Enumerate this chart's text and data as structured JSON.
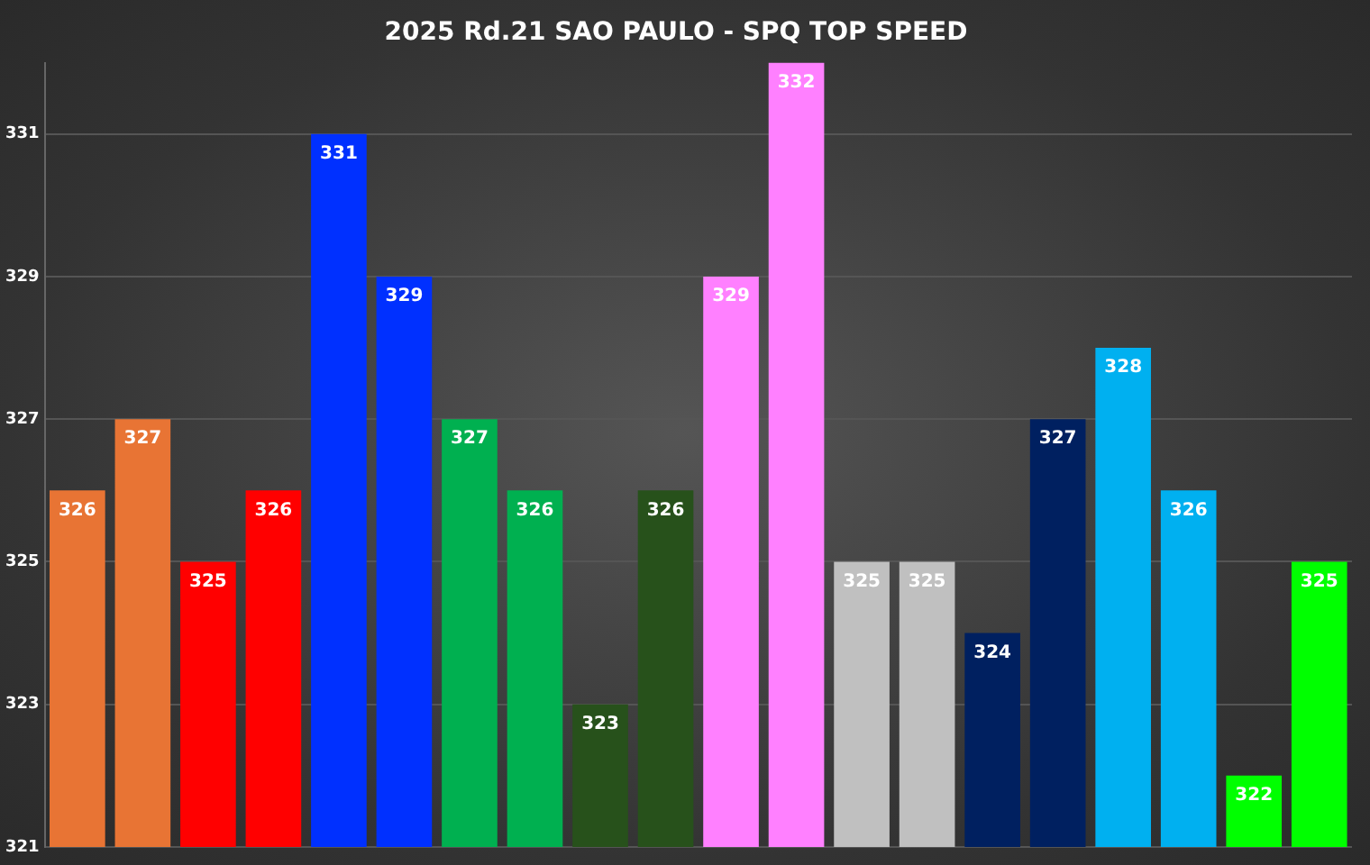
{
  "chart_data": {
    "type": "bar",
    "title": "2025 Rd.21 SAO PAULO - SPQ TOP SPEED",
    "categories": [
      null,
      null,
      null,
      null,
      null,
      null,
      null,
      null,
      null,
      null,
      null,
      null,
      null,
      null,
      null,
      null,
      null,
      null,
      null,
      null
    ],
    "values": [
      326,
      327,
      325,
      326,
      331,
      329,
      327,
      326,
      323,
      326,
      329,
      332,
      325,
      325,
      324,
      327,
      328,
      326,
      322,
      325
    ],
    "colors": [
      "#e87434",
      "#e87434",
      "#ff0000",
      "#ff0000",
      "#0030ff",
      "#0030ff",
      "#00b050",
      "#00b050",
      "#27511b",
      "#27511b",
      "#ff80ff",
      "#ff80ff",
      "#c0c0c0",
      "#c0c0c0",
      "#002060",
      "#002060",
      "#00b0f0",
      "#00b0f0",
      "#00ff00",
      "#00ff00"
    ],
    "ylim": [
      321,
      332
    ],
    "yticks": [
      321,
      323,
      325,
      327,
      329,
      331
    ],
    "grid": "y",
    "data_labels": true,
    "legend": false
  }
}
